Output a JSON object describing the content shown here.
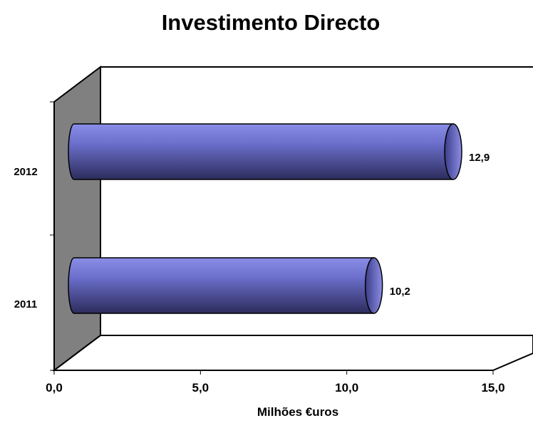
{
  "chart_data": {
    "type": "bar",
    "orientation": "horizontal",
    "style": "3d-cylinder",
    "title": "Investimento Directo",
    "xlabel": "Milhões €uros",
    "ylabel": "",
    "categories": [
      "2011",
      "2012"
    ],
    "values": [
      10.2,
      12.9
    ],
    "value_labels": [
      "10,2",
      "12,9"
    ],
    "xlim": [
      0,
      15
    ],
    "xticks": [
      0,
      5,
      10,
      15
    ],
    "xtick_labels": [
      "0,0",
      "5,0",
      "10,0",
      "15,0"
    ],
    "grid": false,
    "legend": "none"
  },
  "colors": {
    "bar_light": "#8a8ee6",
    "bar_dark": "#2c2c5c",
    "bar_cap": "#5a5cb8",
    "side_wall": "#808080"
  }
}
